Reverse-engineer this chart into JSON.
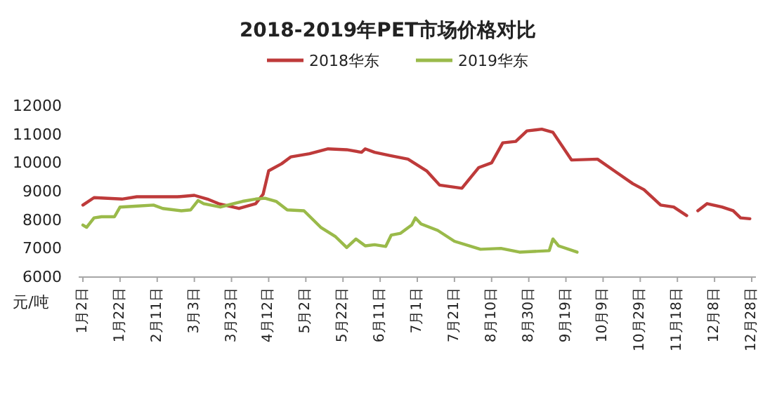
{
  "chart_data": {
    "type": "line",
    "title": "2018-2019年PET市场价格对比",
    "ylabel": "元/吨",
    "legend": "top",
    "marker": "none",
    "line_style": "solid",
    "grid": false,
    "ylim": [
      6000,
      12000
    ],
    "yticks": [
      6000,
      7000,
      8000,
      9000,
      10000,
      11000,
      12000
    ],
    "xlim": [
      "--01-02",
      "--12-28"
    ],
    "xticks": [
      {
        "value": "--01-02",
        "label": "1月2日"
      },
      {
        "value": "--01-22",
        "label": "1月22日"
      },
      {
        "value": "--02-11",
        "label": "2月11日"
      },
      {
        "value": "--03-03",
        "label": "3月3日"
      },
      {
        "value": "--03-23",
        "label": "3月23日"
      },
      {
        "value": "--04-12",
        "label": "4月12日"
      },
      {
        "value": "--05-02",
        "label": "5月2日"
      },
      {
        "value": "--05-22",
        "label": "5月22日"
      },
      {
        "value": "--06-11",
        "label": "6月11日"
      },
      {
        "value": "--07-01",
        "label": "7月1日"
      },
      {
        "value": "--07-21",
        "label": "7月21日"
      },
      {
        "value": "--08-10",
        "label": "8月10日"
      },
      {
        "value": "--08-30",
        "label": "8月30日"
      },
      {
        "value": "--09-19",
        "label": "9月19日"
      },
      {
        "value": "--10-09",
        "label": "10月9日"
      },
      {
        "value": "--10-29",
        "label": "10月29日"
      },
      {
        "value": "--11-18",
        "label": "11月18日"
      },
      {
        "value": "--12-08",
        "label": "12月8日"
      },
      {
        "value": "--12-28",
        "label": "12月28日"
      }
    ],
    "series": [
      {
        "name": "2018华东",
        "color": "#be3a3a",
        "x": [
          "--01-02",
          "--01-08",
          "--01-23",
          "--01-31",
          "--02-22",
          "--03-03",
          "--03-10",
          "--03-16",
          "--03-27",
          "--04-05",
          "--04-09",
          "--04-12",
          "--04-19",
          "--04-24",
          "--05-04",
          "--05-14",
          "--05-24",
          "--06-01",
          "--06-03",
          "--06-08",
          "--06-16",
          "--06-26",
          "--07-06",
          "--07-13",
          "--07-25",
          "--08-03",
          "--08-10",
          "--08-16",
          "--08-23",
          "--08-29",
          "--09-06",
          "--09-12",
          "--09-22",
          "--10-06",
          "--10-15",
          "--10-25",
          "--10-31",
          "--11-09",
          "--11-16",
          "--11-23"
        ],
        "values": [
          8500,
          8760,
          8710,
          8790,
          8790,
          8840,
          8710,
          8550,
          8380,
          8550,
          8880,
          9700,
          9950,
          10190,
          10300,
          10470,
          10440,
          10350,
          10470,
          10350,
          10240,
          10110,
          9700,
          9200,
          9090,
          9810,
          9980,
          10680,
          10730,
          11100,
          11160,
          11050,
          10080,
          10110,
          9700,
          9250,
          9040,
          8500,
          8430,
          8130
        ]
      },
      {
        "color": "#be3a3a",
        "x": [
          "--11-29",
          "--12-04",
          "--12-12",
          "--12-18",
          "--12-22",
          "--12-27"
        ],
        "values": [
          8300,
          8550,
          8430,
          8300,
          8050,
          8020
        ]
      },
      {
        "name": "2019华东",
        "color": "#9aba4a",
        "x": [
          "--01-02",
          "--01-04",
          "--01-08",
          "--01-12",
          "--01-19",
          "--01-22",
          "--01-30",
          "--02-09",
          "--02-14",
          "--02-24",
          "--03-01",
          "--03-05",
          "--03-08",
          "--03-17",
          "--03-24",
          "--03-29",
          "--04-05",
          "--04-10",
          "--04-16",
          "--04-22",
          "--05-01",
          "--05-10",
          "--05-18",
          "--05-24",
          "--05-29",
          "--06-03",
          "--06-08",
          "--06-14",
          "--06-17",
          "--06-22",
          "--06-28",
          "--06-30",
          "--07-03",
          "--07-12",
          "--07-21",
          "--08-04",
          "--08-15",
          "--08-25",
          "--09-10",
          "--09-12",
          "--09-15",
          "--09-25"
        ],
        "values": [
          7800,
          7720,
          8050,
          8090,
          8090,
          8430,
          8460,
          8500,
          8380,
          8300,
          8330,
          8660,
          8550,
          8430,
          8550,
          8630,
          8710,
          8740,
          8630,
          8330,
          8300,
          7720,
          7390,
          7010,
          7310,
          7070,
          7110,
          7050,
          7450,
          7510,
          7800,
          8050,
          7840,
          7610,
          7230,
          6950,
          6980,
          6850,
          6900,
          7310,
          7070,
          6850
        ]
      }
    ]
  }
}
